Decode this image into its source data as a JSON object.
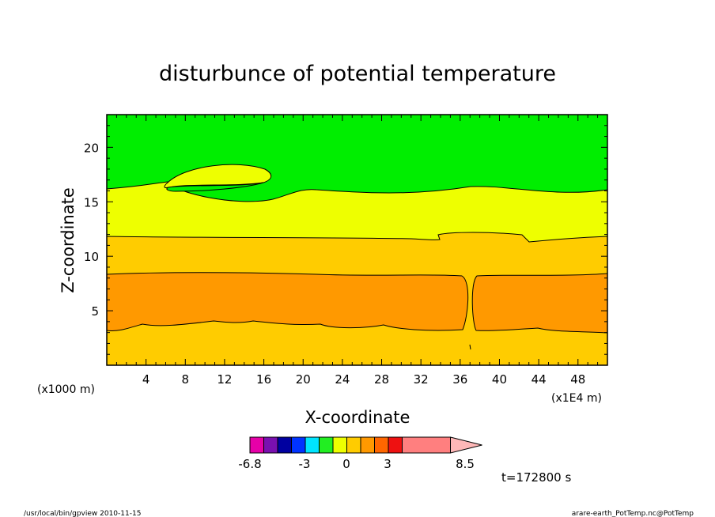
{
  "chart_data": {
    "type": "filled-contour",
    "title": "disturbunce of potential temperature",
    "xlabel": "X-coordinate",
    "ylabel": "Z-coordinate",
    "xlim": [
      0,
      51
    ],
    "ylim": [
      0,
      23
    ],
    "x_ticks": [
      4,
      8,
      12,
      16,
      20,
      24,
      28,
      32,
      36,
      40,
      44,
      48
    ],
    "y_ticks": [
      5,
      10,
      15,
      20
    ],
    "x_unit": "(x1E4 m)",
    "y_unit": "(x1000 m)",
    "time_label": "t=172800 s",
    "colors": {
      "upper": "#00ee00",
      "middle": "#eeff00",
      "lower": "#ffcc00",
      "core": "#ff9900"
    },
    "bands": [
      {
        "level": "core",
        "color": "#ff9900",
        "z_range": [
          3.4,
          8.4
        ],
        "split_at_x": 37
      },
      {
        "level": "lower",
        "color": "#ffcc00",
        "z_range": [
          0,
          11.7
        ]
      },
      {
        "level": "middle",
        "color": "#eeff00",
        "z_range": [
          11.7,
          16.3
        ]
      },
      {
        "level": "upper",
        "color": "#00ee00",
        "z_range": [
          16.3,
          23
        ],
        "yellow_lobe": {
          "x": [
            6,
            17
          ],
          "z": [
            15.6,
            18.4
          ]
        }
      }
    ],
    "colorbar": {
      "tick_labels": [
        "-6.8",
        "-3",
        "0",
        "3",
        "8.5"
      ],
      "colors": [
        "#e600a8",
        "#7a10b0",
        "#0000a0",
        "#0033ff",
        "#00e5ff",
        "#22ee22",
        "#eeff00",
        "#ffcc00",
        "#ff9900",
        "#ff6600",
        "#ee1111",
        "#ff7f7f"
      ],
      "extension_color": "#ffb8b8"
    }
  },
  "footer": {
    "left": "/usr/local/bin/gpview  2010-11-15",
    "right": "arare-earth_PotTemp.nc@PotTemp"
  }
}
